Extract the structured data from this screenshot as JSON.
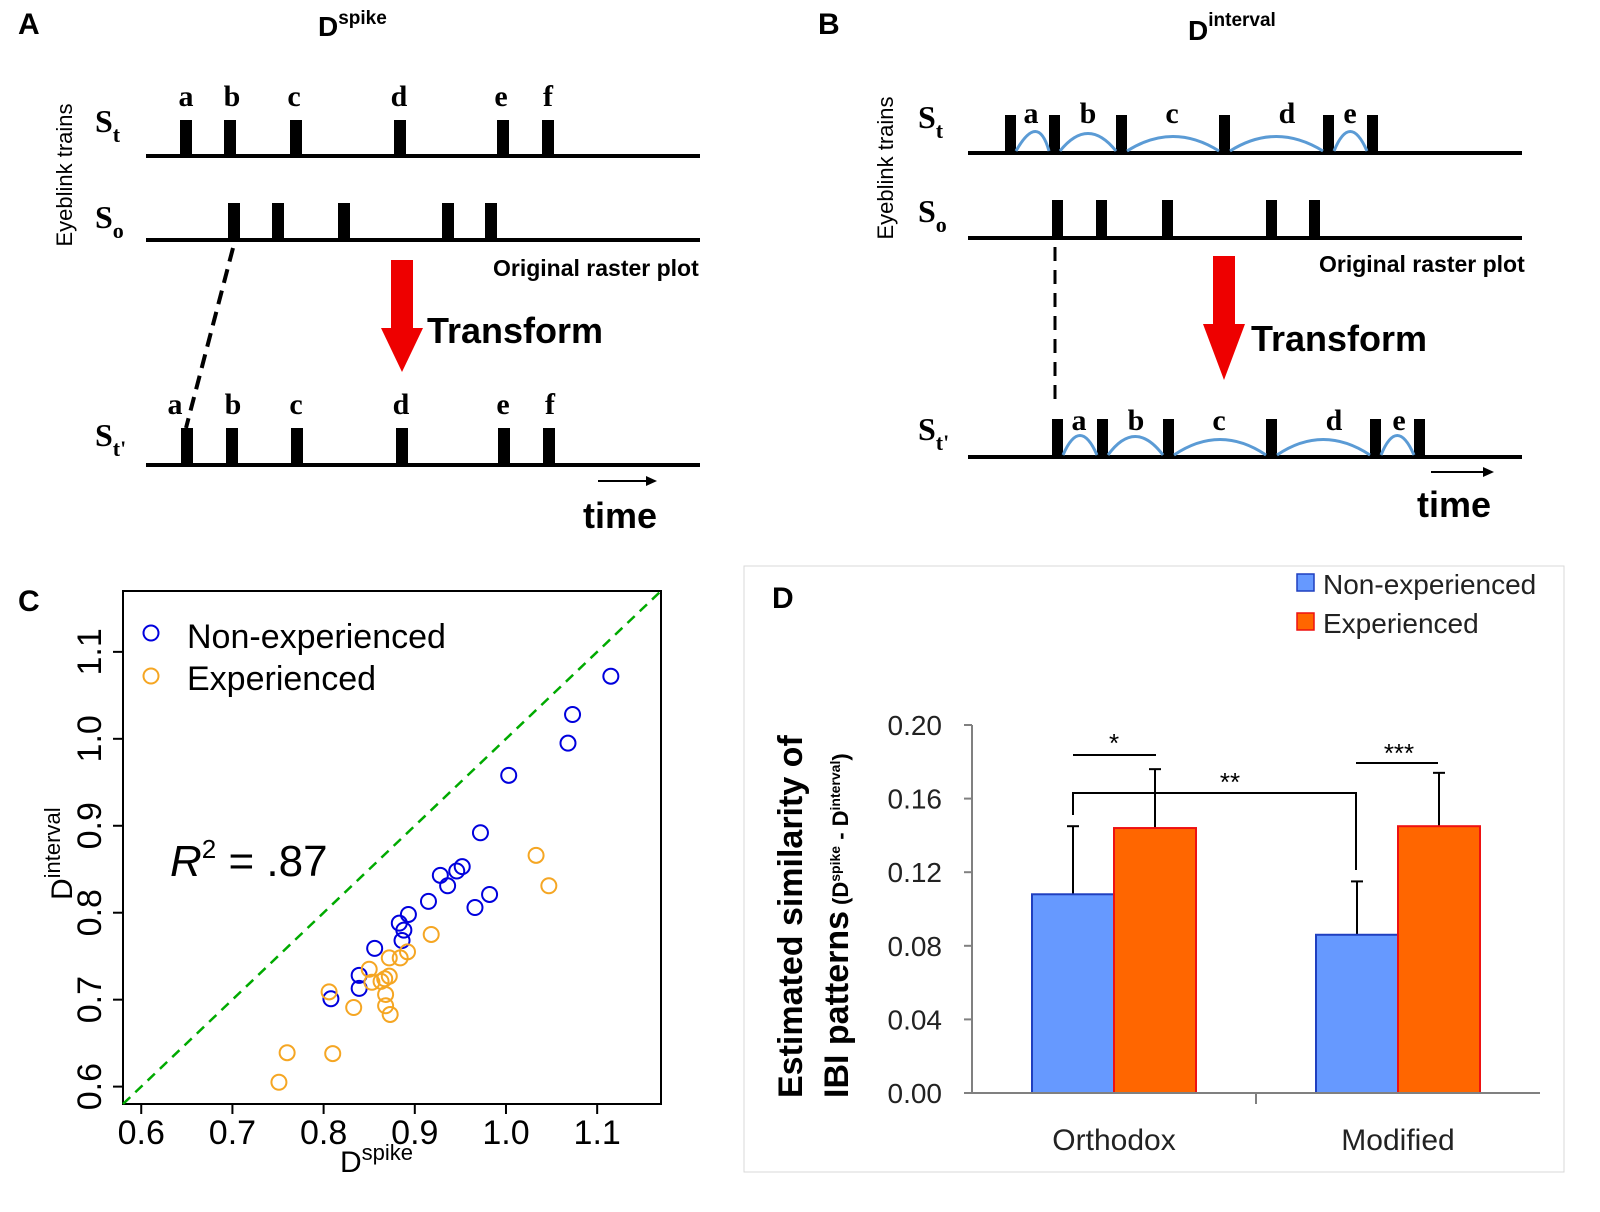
{
  "colors": {
    "blue": "#0000dd",
    "orange": "#f5a623",
    "green_dash": "#00aa00",
    "arc": "#5b9bd5",
    "red_arrow": "#ee0000",
    "bar_blue": "#6699ff",
    "bar_orange": "#ff6600",
    "bar_blue_edge": "#1f3fbf",
    "bar_orange_edge": "#ee1111"
  },
  "panel_a": {
    "letter": "A",
    "title_base": "D",
    "title_sup": "spike",
    "ylabel": "Eyeblink trains",
    "row_t": "S",
    "row_t_sub": "t",
    "row_o": "S",
    "row_o_sub": "o",
    "row_tp": "S",
    "row_tp_sub": "t'",
    "spike_labels": [
      "a",
      "b",
      "c",
      "d",
      "e",
      "f"
    ],
    "raster_label": "Original raster plot",
    "transform_label": "Transform",
    "time_label": "time"
  },
  "panel_b": {
    "letter": "B",
    "title_base": "D",
    "title_sup": "interval",
    "ylabel": "Eyeblink trains",
    "row_t": "S",
    "row_t_sub": "t",
    "row_o": "S",
    "row_o_sub": "o",
    "row_tp": "S",
    "row_tp_sub": "t'",
    "interval_labels": [
      "a",
      "b",
      "c",
      "d",
      "e"
    ],
    "raster_label": "Original raster plot",
    "transform_label": "Transform",
    "time_label": "time"
  },
  "chart_data": [
    {
      "panel": "C",
      "type": "scatter",
      "xlabel": "D",
      "xlabel_sup": "spike",
      "ylabel": "D",
      "ylabel_sup": "interval",
      "xlim": [
        0.58,
        1.17
      ],
      "ylim": [
        0.58,
        1.17
      ],
      "xticks": [
        "0.6",
        "0.7",
        "0.8",
        "0.9",
        "1.0",
        "1.1"
      ],
      "yticks": [
        "0.6",
        "0.7",
        "0.8",
        "0.9",
        "1.0",
        "1.1"
      ],
      "reference_line": "y = x",
      "annotation": "R² = .87",
      "annotation_var": "R",
      "annotation_sup": "2",
      "annotation_val": " =  .87",
      "legend_position": "top-left",
      "series": [
        {
          "name": "Non-experienced",
          "points": [
            [
              1.115,
              1.072
            ],
            [
              1.073,
              1.028
            ],
            [
              1.068,
              0.995
            ],
            [
              1.003,
              0.958
            ],
            [
              0.972,
              0.892
            ],
            [
              0.952,
              0.853
            ],
            [
              0.946,
              0.848
            ],
            [
              0.928,
              0.843
            ],
            [
              0.936,
              0.831
            ],
            [
              0.982,
              0.821
            ],
            [
              0.915,
              0.813
            ],
            [
              0.966,
              0.806
            ],
            [
              0.893,
              0.798
            ],
            [
              0.883,
              0.788
            ],
            [
              0.888,
              0.78
            ],
            [
              0.886,
              0.768
            ],
            [
              0.856,
              0.759
            ],
            [
              0.839,
              0.728
            ],
            [
              0.839,
              0.713
            ],
            [
              0.808,
              0.701
            ]
          ]
        },
        {
          "name": "Experienced",
          "points": [
            [
              1.033,
              0.866
            ],
            [
              1.047,
              0.831
            ],
            [
              0.918,
              0.775
            ],
            [
              0.892,
              0.755
            ],
            [
              0.884,
              0.748
            ],
            [
              0.872,
              0.748
            ],
            [
              0.85,
              0.735
            ],
            [
              0.872,
              0.727
            ],
            [
              0.867,
              0.724
            ],
            [
              0.863,
              0.721
            ],
            [
              0.853,
              0.72
            ],
            [
              0.868,
              0.706
            ],
            [
              0.806,
              0.709
            ],
            [
              0.833,
              0.691
            ],
            [
              0.868,
              0.693
            ],
            [
              0.873,
              0.683
            ],
            [
              0.76,
              0.639
            ],
            [
              0.81,
              0.638
            ],
            [
              0.751,
              0.605
            ]
          ]
        }
      ]
    },
    {
      "panel": "D",
      "type": "bar",
      "ylabel_line1": "Estimated similarity of",
      "ylabel_line2": "IBI patterns",
      "ylabel_sub": "(D",
      "ylabel_sub_sup1": "spike",
      "ylabel_sub_mid": " - D",
      "ylabel_sub_sup2": "interval",
      "ylabel_sub_end": ")",
      "categories": [
        "Orthodox",
        "Modified"
      ],
      "ylim": [
        0,
        0.2
      ],
      "yticks": [
        "0.00",
        "0.04",
        "0.08",
        "0.12",
        "0.16",
        "0.20"
      ],
      "legend_position": "top-right",
      "series": [
        {
          "name": "Non-experienced",
          "values": [
            0.108,
            0.086
          ],
          "errors": [
            0.037,
            0.029
          ]
        },
        {
          "name": "Experienced",
          "values": [
            0.144,
            0.145
          ],
          "errors": [
            0.032,
            0.029
          ]
        }
      ],
      "significance": [
        {
          "label": "*",
          "between": "Orthodox groups"
        },
        {
          "label": "***",
          "between": "Modified groups"
        },
        {
          "label": "**",
          "between": "Non-experienced Orthodox vs Modified"
        }
      ]
    }
  ]
}
